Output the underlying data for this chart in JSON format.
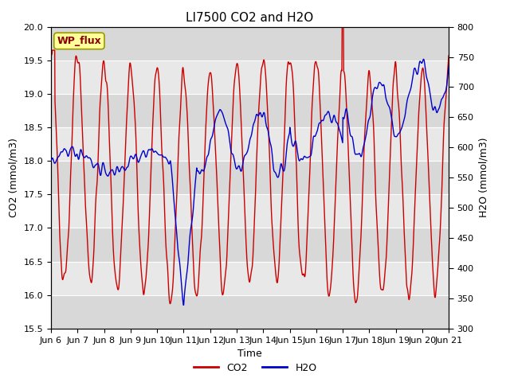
{
  "title": "LI7500 CO2 and H2O",
  "xlabel": "Time",
  "ylabel_left": "CO2 (mmol/m3)",
  "ylabel_right": "H2O (mmol/m3)",
  "ylim_left": [
    15.5,
    20.0
  ],
  "ylim_right": [
    300,
    800
  ],
  "yticks_left": [
    15.5,
    16.0,
    16.5,
    17.0,
    17.5,
    18.0,
    18.5,
    19.0,
    19.5,
    20.0
  ],
  "yticks_right": [
    300,
    350,
    400,
    450,
    500,
    550,
    600,
    650,
    700,
    750,
    800
  ],
  "x_tick_labels": [
    "Jun 6",
    "Jun 7",
    "Jun 8",
    "Jun 9",
    "Jun 10",
    "Jun 11",
    "Jun 12",
    "Jun 13",
    "Jun 14",
    "Jun 15",
    "Jun 16",
    "Jun 17",
    "Jun 18",
    "Jun 19",
    "Jun 20",
    "Jun 21"
  ],
  "co2_color": "#cc0000",
  "h2o_color": "#0000cc",
  "background_color": "#ffffff",
  "plot_bg_color": "#e0e0e0",
  "plot_bg_light": "#ececec",
  "grid_color": "#ffffff",
  "annotation_text": "WP_flux",
  "annotation_bg": "#ffff99",
  "annotation_border": "#999900",
  "legend_co2": "CO2",
  "legend_h2o": "H2O",
  "title_fontsize": 11,
  "axis_fontsize": 9,
  "tick_fontsize": 8,
  "line_width": 1.0
}
